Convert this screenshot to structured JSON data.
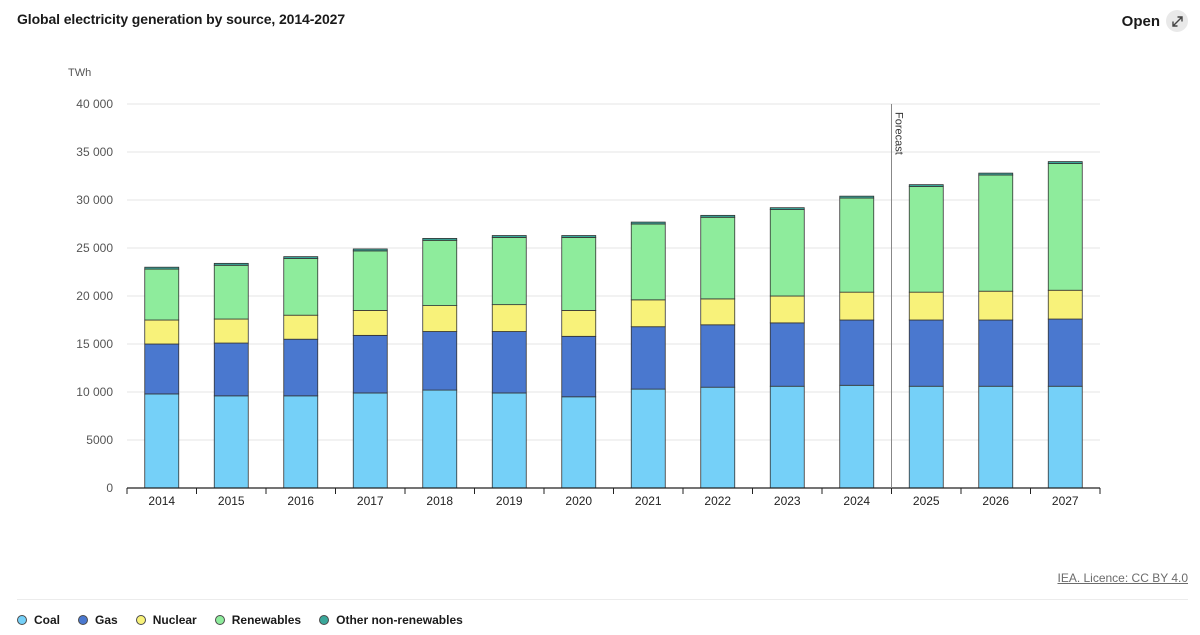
{
  "header": {
    "title": "Global electricity generation by source, 2014-2027",
    "open_label": "Open",
    "open_icon": "expand-icon"
  },
  "footer": {
    "licence": "IEA. Licence: CC BY 4.0"
  },
  "chart_data": {
    "type": "bar",
    "stacked": true,
    "title": "Global electricity generation by source, 2014-2027",
    "xlabel": "",
    "ylabel": "TWh",
    "ylim": [
      0,
      40000
    ],
    "yticks": [
      0,
      5000,
      10000,
      15000,
      20000,
      25000,
      30000,
      35000,
      40000
    ],
    "ytick_labels": [
      "0",
      "5000",
      "10 000",
      "15 000",
      "20 000",
      "25 000",
      "30 000",
      "35 000",
      "40 000"
    ],
    "categories": [
      "2014",
      "2015",
      "2016",
      "2017",
      "2018",
      "2019",
      "2020",
      "2021",
      "2022",
      "2023",
      "2024",
      "2025",
      "2026",
      "2027"
    ],
    "annotation": {
      "label": "Forecast",
      "between": [
        "2024",
        "2025"
      ]
    },
    "grid": true,
    "legend_position": "bottom",
    "series": [
      {
        "name": "Coal",
        "color": "#75d0f8",
        "values": [
          9800,
          9600,
          9600,
          9900,
          10200,
          9900,
          9500,
          10300,
          10500,
          10600,
          10700,
          10600,
          10600,
          10600
        ]
      },
      {
        "name": "Gas",
        "color": "#4a78cf",
        "values": [
          5200,
          5500,
          5900,
          6000,
          6100,
          6400,
          6300,
          6500,
          6500,
          6600,
          6800,
          6900,
          6900,
          7000
        ]
      },
      {
        "name": "Nuclear",
        "color": "#f8f27a",
        "values": [
          2500,
          2500,
          2500,
          2600,
          2700,
          2800,
          2700,
          2800,
          2700,
          2800,
          2900,
          2900,
          3000,
          3000
        ]
      },
      {
        "name": "Renewables",
        "color": "#8eec9c",
        "values": [
          5300,
          5600,
          5900,
          6200,
          6800,
          7000,
          7600,
          7900,
          8500,
          9000,
          9800,
          11000,
          12100,
          13200
        ]
      },
      {
        "name": "Other non-renewables",
        "color": "#3aa79a",
        "values": [
          200,
          200,
          200,
          200,
          200,
          200,
          200,
          200,
          200,
          200,
          200,
          200,
          200,
          200
        ]
      }
    ]
  }
}
